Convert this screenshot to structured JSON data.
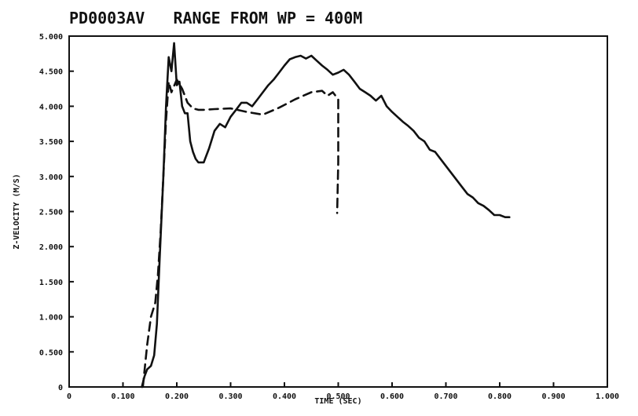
{
  "chart_data": {
    "type": "line",
    "title": "PD0003AV   RANGE FROM WP = 400M",
    "xlabel": "TIME (SEC)",
    "ylabel": "Z-VELOCITY (M/S)",
    "xlim": [
      0,
      1.0
    ],
    "ylim": [
      0,
      5.0
    ],
    "grid": false,
    "x_ticks": [
      0,
      0.1,
      0.2,
      0.3,
      0.4,
      0.5,
      0.6,
      0.7,
      0.8,
      0.9,
      1.0
    ],
    "x_tick_labels": [
      "0",
      "0.100",
      "0.200",
      "0.300",
      "0.400",
      "0.500",
      "0.600",
      "0.700",
      "0.800",
      "0.900",
      "1.000"
    ],
    "y_ticks": [
      0,
      0.5,
      1.0,
      1.5,
      2.0,
      2.5,
      3.0,
      3.5,
      4.0,
      4.5,
      5.0
    ],
    "y_tick_labels": [
      "0",
      "0.500",
      "1.000",
      "1.500",
      "2.000",
      "2.500",
      "3.000",
      "3.500",
      "4.000",
      "4.500",
      "5.000"
    ],
    "series": [
      {
        "style": "solid",
        "color": "#111111",
        "x": [
          0.135,
          0.14,
          0.145,
          0.152,
          0.158,
          0.163,
          0.168,
          0.175,
          0.18,
          0.185,
          0.19,
          0.195,
          0.2,
          0.205,
          0.21,
          0.215,
          0.22,
          0.225,
          0.23,
          0.235,
          0.24,
          0.25,
          0.26,
          0.27,
          0.28,
          0.29,
          0.3,
          0.31,
          0.32,
          0.33,
          0.34,
          0.35,
          0.36,
          0.37,
          0.38,
          0.39,
          0.4,
          0.41,
          0.42,
          0.43,
          0.44,
          0.45,
          0.46,
          0.47,
          0.48,
          0.49,
          0.5,
          0.51,
          0.52,
          0.53,
          0.54,
          0.55,
          0.56,
          0.57,
          0.58,
          0.59,
          0.6,
          0.61,
          0.62,
          0.63,
          0.64,
          0.65,
          0.66,
          0.67,
          0.68,
          0.69,
          0.7,
          0.71,
          0.72,
          0.73,
          0.74,
          0.75,
          0.76,
          0.77,
          0.78,
          0.79,
          0.8,
          0.81,
          0.818
        ],
        "y": [
          0.0,
          0.15,
          0.25,
          0.3,
          0.45,
          0.9,
          1.8,
          3.0,
          4.0,
          4.7,
          4.5,
          4.9,
          4.3,
          4.35,
          4.0,
          3.9,
          3.9,
          3.5,
          3.35,
          3.25,
          3.2,
          3.2,
          3.4,
          3.65,
          3.75,
          3.7,
          3.85,
          3.95,
          4.05,
          4.05,
          4.0,
          4.1,
          4.2,
          4.3,
          4.38,
          4.48,
          4.58,
          4.67,
          4.7,
          4.72,
          4.68,
          4.72,
          4.65,
          4.58,
          4.52,
          4.45,
          4.48,
          4.52,
          4.45,
          4.35,
          4.25,
          4.2,
          4.15,
          4.08,
          4.15,
          4.0,
          3.92,
          3.85,
          3.78,
          3.72,
          3.65,
          3.55,
          3.5,
          3.38,
          3.35,
          3.25,
          3.15,
          3.05,
          2.95,
          2.85,
          2.75,
          2.7,
          2.62,
          2.58,
          2.52,
          2.45,
          2.45,
          2.42,
          2.42
        ]
      },
      {
        "style": "dashed",
        "color": "#111111",
        "x": [
          0.137,
          0.145,
          0.152,
          0.16,
          0.165,
          0.17,
          0.175,
          0.18,
          0.185,
          0.19,
          0.2,
          0.21,
          0.22,
          0.23,
          0.24,
          0.25,
          0.27,
          0.3,
          0.33,
          0.36,
          0.39,
          0.42,
          0.45,
          0.47,
          0.48,
          0.49,
          0.5,
          0.5,
          0.498
        ],
        "y": [
          0.0,
          0.6,
          1.0,
          1.2,
          1.6,
          2.2,
          3.0,
          3.8,
          4.35,
          4.2,
          4.38,
          4.25,
          4.05,
          3.97,
          3.95,
          3.95,
          3.96,
          3.97,
          3.92,
          3.88,
          3.98,
          4.1,
          4.2,
          4.22,
          4.15,
          4.2,
          4.1,
          3.2,
          2.48
        ]
      }
    ]
  }
}
